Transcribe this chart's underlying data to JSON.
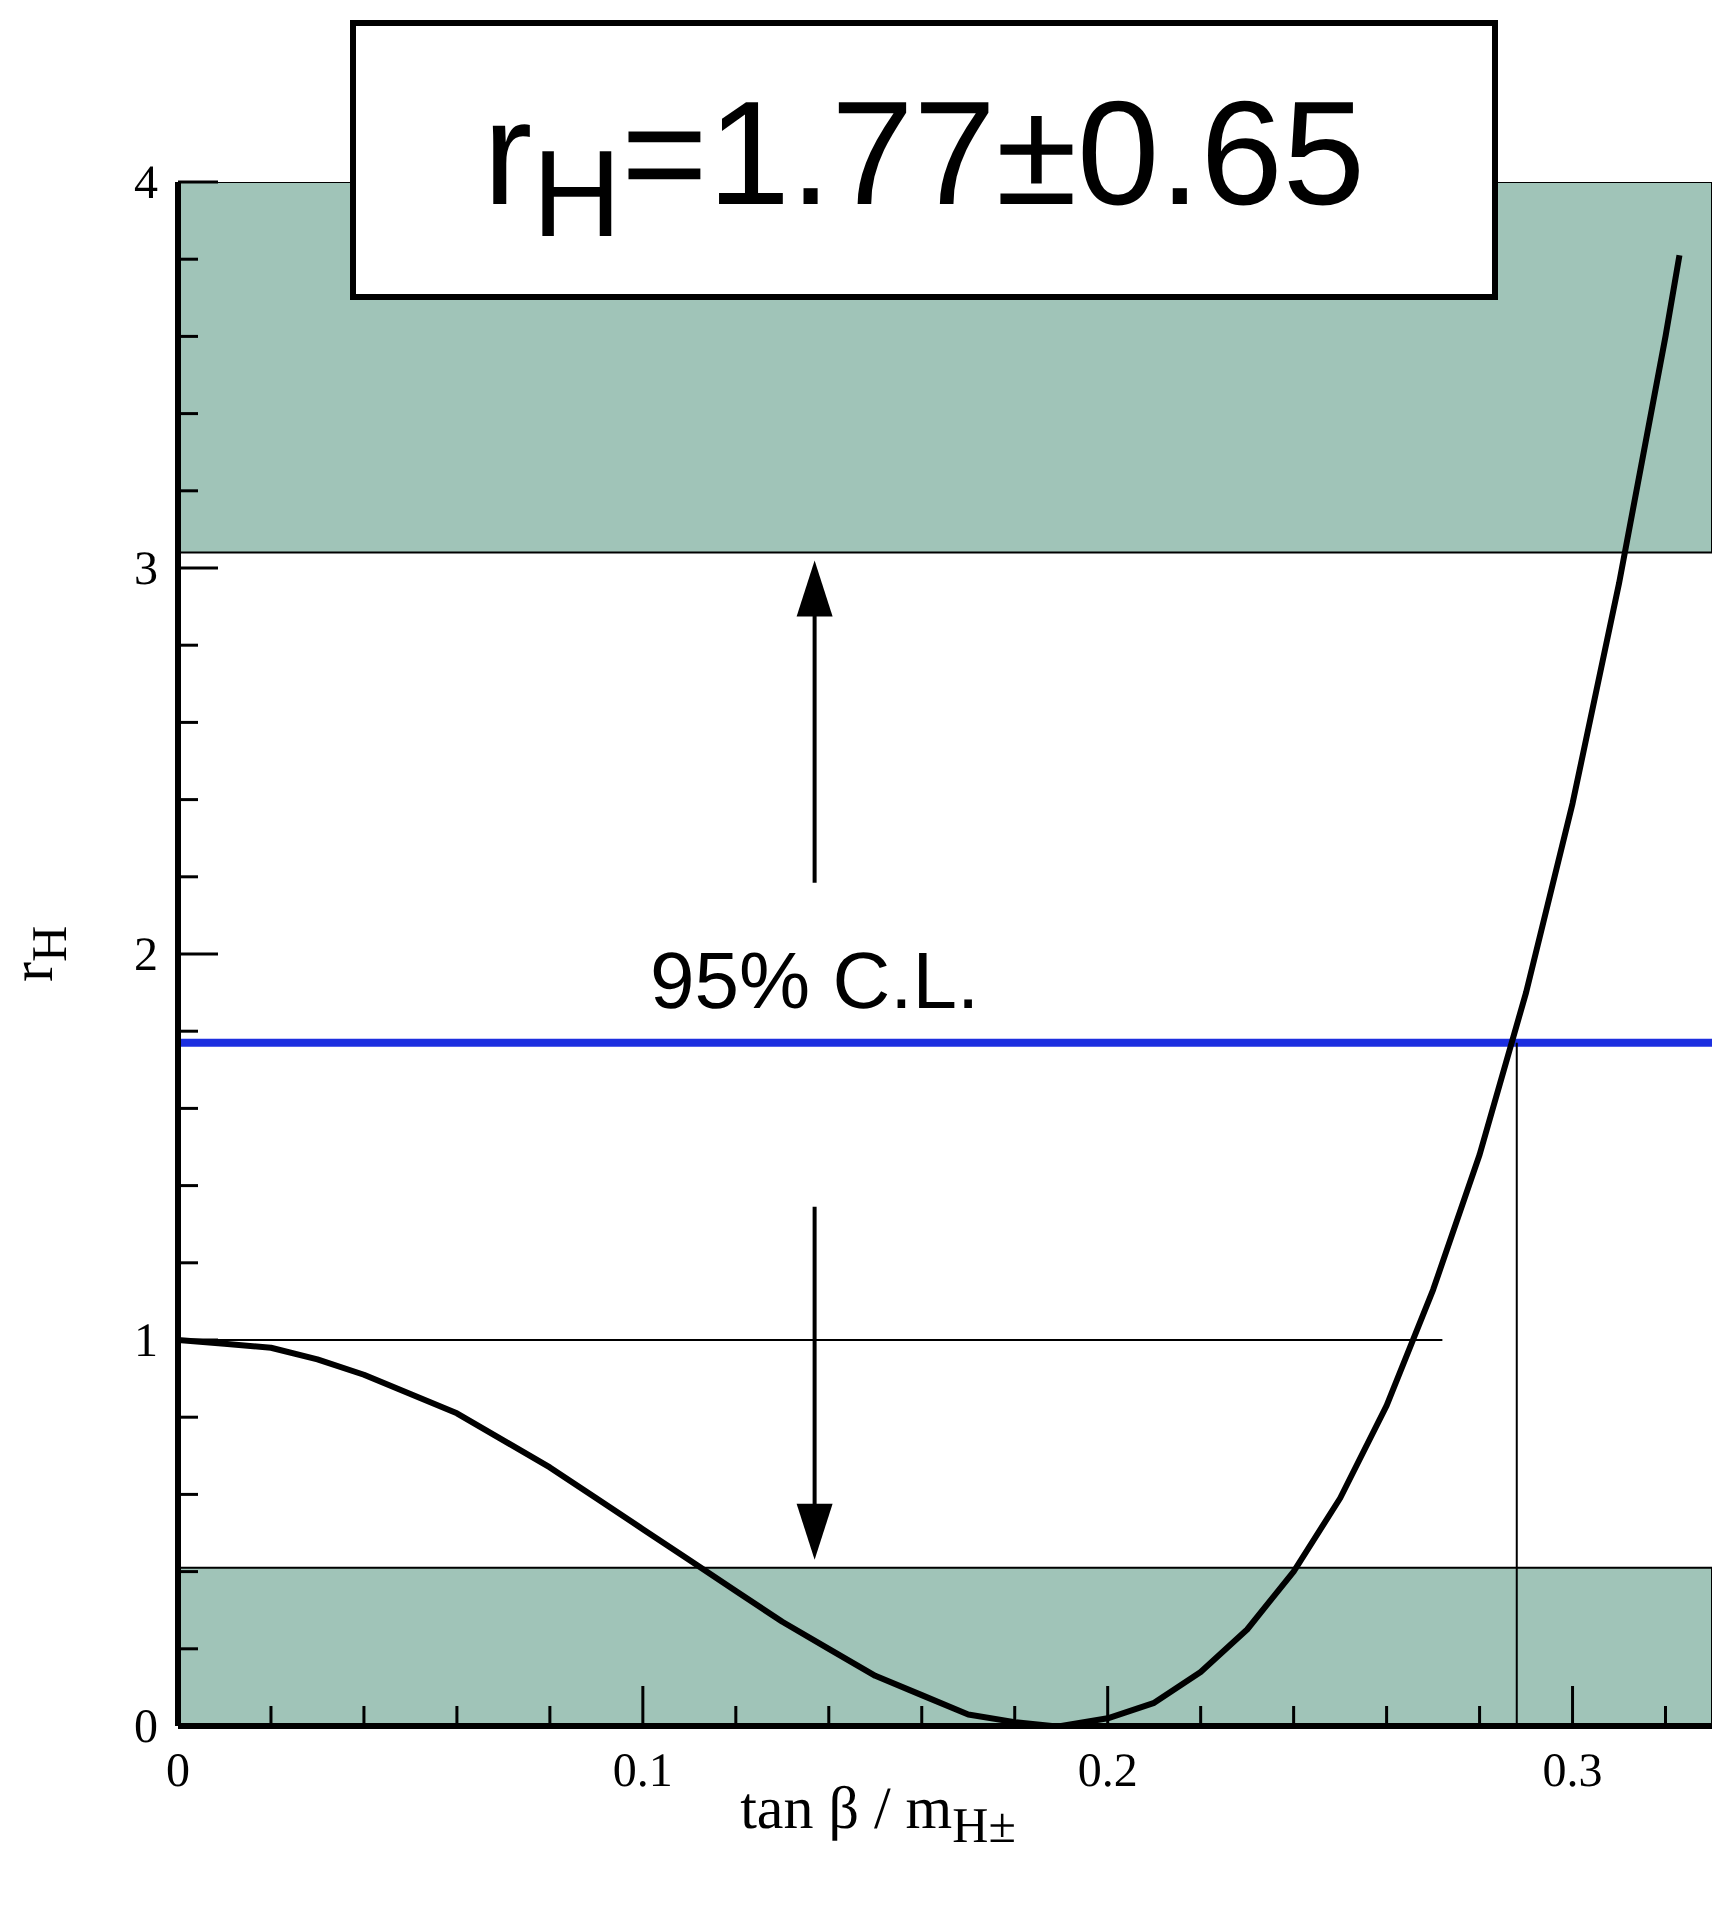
{
  "chart_data": {
    "type": "line",
    "title": "r$_{H}$=1.77±0.65",
    "xlabel": "tan β / m$_{H±}$",
    "ylabel": "r$_{H}$",
    "annotations": [
      "95% C.L."
    ],
    "xlim": [
      0,
      0.33
    ],
    "xticks": [
      0,
      {
        "value": 0.02,
        "label": null
      },
      {
        "value": 0.04,
        "label": null
      },
      {
        "value": 0.06,
        "label": null
      },
      {
        "value": 0.08,
        "label": null
      },
      0.1,
      {
        "value": 0.12,
        "label": null
      },
      {
        "value": 0.14,
        "label": null
      },
      {
        "value": 0.16,
        "label": null
      },
      {
        "value": 0.18,
        "label": null
      },
      0.2,
      {
        "value": 0.22,
        "label": null
      },
      {
        "value": 0.24,
        "label": null
      },
      {
        "value": 0.26,
        "label": null
      },
      {
        "value": 0.28,
        "label": null
      },
      0.3,
      {
        "value": 0.32,
        "label": null
      }
    ],
    "ylim": [
      0,
      4
    ],
    "yticks": [
      0,
      {
        "value": 0.2,
        "label": null
      },
      {
        "value": 0.4,
        "label": null
      },
      {
        "value": 0.6,
        "label": null
      },
      {
        "value": 0.8,
        "label": null
      },
      1,
      {
        "value": 1.2,
        "label": null
      },
      {
        "value": 1.4,
        "label": null
      },
      {
        "value": 1.6,
        "label": null
      },
      {
        "value": 1.8,
        "label": null
      },
      2,
      {
        "value": 2.2,
        "label": null
      },
      {
        "value": 2.4,
        "label": null
      },
      {
        "value": 2.6,
        "label": null
      },
      {
        "value": 2.8,
        "label": null
      },
      3,
      {
        "value": 3.2,
        "label": null
      },
      {
        "value": 3.4,
        "label": null
      },
      {
        "value": 3.6,
        "label": null
      },
      {
        "value": 3.8,
        "label": null
      },
      4
    ],
    "bands": [
      {
        "axis": "y",
        "from": 0,
        "to": 0.41,
        "color": "#a0c4b8"
      },
      {
        "axis": "y",
        "from": 3.04,
        "to": 4,
        "color": "#a0c4b8"
      }
    ],
    "ref_lines": [
      {
        "axis": "y",
        "value": 1.77,
        "color": "#1c2fe0"
      }
    ],
    "marker": "none",
    "series": [
      {
        "color": "#000000",
        "x": [
          0,
          0.01,
          0.02,
          0.03,
          0.04,
          0.05,
          0.06,
          0.07,
          0.08,
          0.09,
          0.1,
          0.11,
          0.12,
          0.13,
          0.14,
          0.15,
          0.16,
          0.17,
          0.18,
          0.188,
          0.19,
          0.2,
          0.21,
          0.22,
          0.23,
          0.24,
          0.25,
          0.26,
          0.27,
          0.28,
          0.29,
          0.3,
          0.31,
          0.32,
          0.323
        ],
        "values": [
          1,
          0.99,
          0.98,
          0.95,
          0.91,
          0.86,
          0.81,
          0.74,
          0.67,
          0.59,
          0.51,
          0.43,
          0.35,
          0.27,
          0.2,
          0.13,
          0.08,
          0.03,
          0.01,
          0,
          0,
          0.02,
          0.06,
          0.14,
          0.25,
          0.4,
          0.59,
          0.83,
          1.13,
          1.48,
          1.9,
          2.39,
          2.96,
          3.6,
          3.81
        ]
      },
      {
        "color": "#000000",
        "line_style": "solid",
        "x": [
          0,
          0.272
        ],
        "values": [
          1,
          1
        ]
      },
      {
        "color": "#000000",
        "x": [
          0.288,
          0.288
        ],
        "values": [
          0,
          1.77
        ]
      }
    ]
  }
}
